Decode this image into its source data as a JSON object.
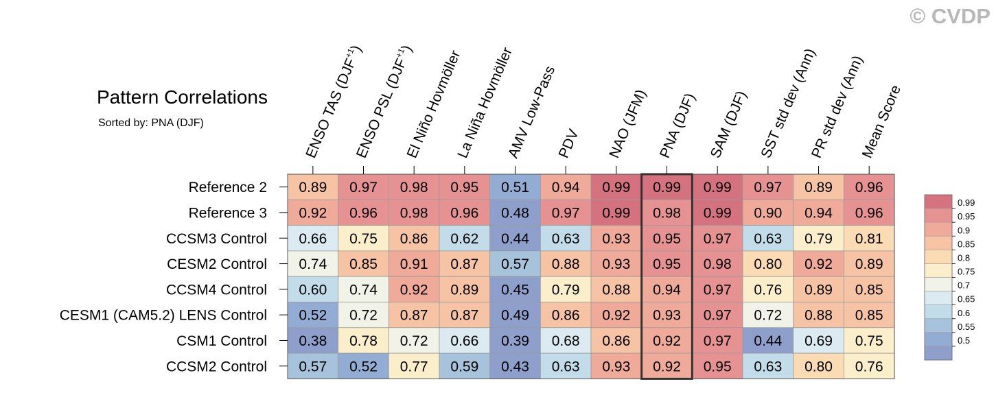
{
  "watermark": "© CVDP",
  "chart_data": {
    "type": "heatmap",
    "title": "Pattern Correlations",
    "subtitle": "Sorted by: PNA (DJF)",
    "columns": [
      {
        "base": "ENSO TAS (DJF",
        "sup": "+1",
        "tail": ")"
      },
      {
        "base": "ENSO PSL (DJF",
        "sup": "+1",
        "tail": ")"
      },
      {
        "base": "El Niño Hovmöller"
      },
      {
        "base": "La Niña Hovmöller"
      },
      {
        "base": "AMV Low-Pass"
      },
      {
        "base": "PDV"
      },
      {
        "base": "NAO (JFM)"
      },
      {
        "base": "PNA (DJF)"
      },
      {
        "base": "SAM (DJF)"
      },
      {
        "base": "SST std dev (Ann)"
      },
      {
        "base": "PR std dev (Ann)"
      },
      {
        "base": "Mean Score"
      }
    ],
    "rows": [
      "Reference 2",
      "Reference 3",
      "CCSM3 Control",
      "CESM2 Control",
      "CCSM4 Control",
      "CESM1 (CAM5.2) LENS Control",
      "CSM1 Control",
      "CCSM2 Control"
    ],
    "values": [
      [
        "0.89",
        "0.97",
        "0.98",
        "0.95",
        "0.51",
        "0.94",
        "0.99",
        "0.99",
        "0.99",
        "0.97",
        "0.89",
        "0.96"
      ],
      [
        "0.92",
        "0.96",
        "0.98",
        "0.96",
        "0.48",
        "0.97",
        "0.99",
        "0.98",
        "0.99",
        "0.90",
        "0.94",
        "0.96"
      ],
      [
        "0.66",
        "0.75",
        "0.86",
        "0.62",
        "0.44",
        "0.63",
        "0.93",
        "0.95",
        "0.97",
        "0.63",
        "0.79",
        "0.81"
      ],
      [
        "0.74",
        "0.85",
        "0.91",
        "0.87",
        "0.57",
        "0.88",
        "0.93",
        "0.95",
        "0.98",
        "0.80",
        "0.92",
        "0.89"
      ],
      [
        "0.60",
        "0.74",
        "0.92",
        "0.89",
        "0.45",
        "0.79",
        "0.88",
        "0.94",
        "0.97",
        "0.76",
        "0.89",
        "0.85"
      ],
      [
        "0.52",
        "0.72",
        "0.87",
        "0.87",
        "0.49",
        "0.86",
        "0.92",
        "0.93",
        "0.97",
        "0.72",
        "0.88",
        "0.85"
      ],
      [
        "0.38",
        "0.78",
        "0.72",
        "0.66",
        "0.39",
        "0.68",
        "0.86",
        "0.92",
        "0.97",
        "0.44",
        "0.69",
        "0.75"
      ],
      [
        "0.57",
        "0.52",
        "0.77",
        "0.59",
        "0.43",
        "0.63",
        "0.93",
        "0.92",
        "0.95",
        "0.63",
        "0.80",
        "0.76"
      ]
    ],
    "highlight_column": "PNA (DJF)",
    "colorbar": {
      "levels": [
        "0.99",
        "0.95",
        "0.9",
        "0.85",
        "0.8",
        "0.75",
        "0.7",
        "0.65",
        "0.6",
        "0.55",
        "0.5"
      ],
      "colors": [
        "#d5727f",
        "#e69292",
        "#f0aa9a",
        "#f6c4a5",
        "#fadbb4",
        "#fbeecb",
        "#f2f3e8",
        "#dcebf2",
        "#c3dcea",
        "#a7c3dc",
        "#93acd3",
        "#8f9fcb"
      ]
    }
  }
}
